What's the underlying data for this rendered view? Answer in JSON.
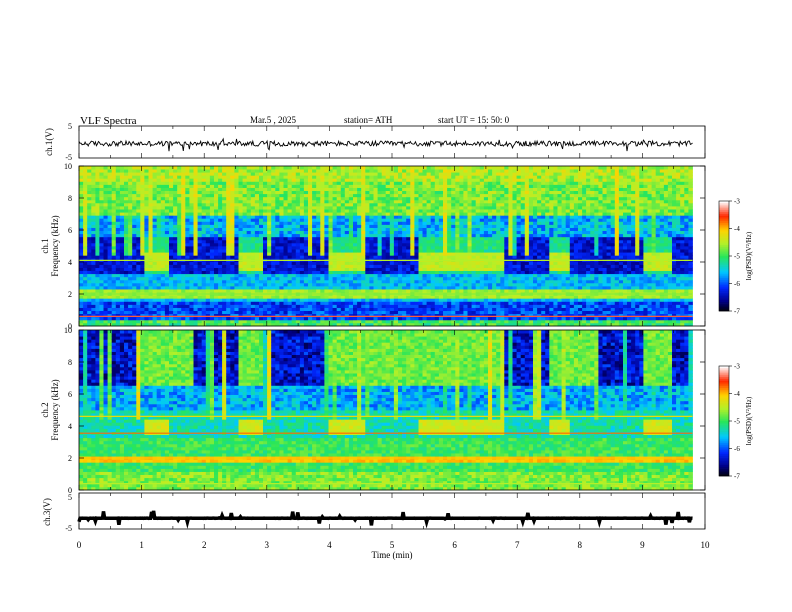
{
  "header": {
    "title": "VLF  Spectra",
    "date": "Mar.5  , 2025",
    "station": "station= ATH",
    "start": "start  UT  =    15: 50: 0"
  },
  "chart_data": [
    {
      "type": "line",
      "name": "ch1-waveform",
      "ylabel": "ch.1(V)",
      "ylim": [
        -5,
        5
      ],
      "yticks": [
        "5",
        "-5"
      ],
      "xlim": [
        0,
        10
      ],
      "description_level": -0.5
    },
    {
      "type": "heatmap",
      "name": "ch1-spectrogram",
      "ylabel": "ch.1\nFrequency  (kHz)",
      "ylabel_lines": [
        "ch.1",
        "Frequency  (kHz)"
      ],
      "ylim": [
        0,
        10
      ],
      "yticks": [
        "0",
        "2",
        "4",
        "6",
        "8",
        "10"
      ],
      "xlim": [
        0,
        10
      ],
      "x_end": 9.8,
      "band_intervals_min": [
        [
          1.05,
          1.45
        ],
        [
          2.55,
          2.95
        ],
        [
          4.0,
          4.55
        ],
        [
          5.45,
          6.8
        ],
        [
          7.5,
          7.85
        ],
        [
          9.0,
          9.5
        ]
      ],
      "colorbar": {
        "label": "log(PSD)(V²/Hz)",
        "range": [
          -7,
          -3
        ],
        "ticks": [
          "-3",
          "-4",
          "-5",
          "-6",
          "-7"
        ]
      }
    },
    {
      "type": "heatmap",
      "name": "ch2-spectrogram",
      "ylabel": "ch.2\nFrequency  (kHz)",
      "ylabel_lines": [
        "ch.2",
        "Frequency  (kHz)"
      ],
      "ylim": [
        0,
        10
      ],
      "yticks": [
        "0",
        "2",
        "4",
        "6",
        "8",
        "10"
      ],
      "xlim": [
        0,
        10
      ],
      "x_end": 9.8,
      "band_intervals_min": [
        [
          1.05,
          1.45
        ],
        [
          2.55,
          2.95
        ],
        [
          4.0,
          4.55
        ],
        [
          5.45,
          6.8
        ],
        [
          7.5,
          7.85
        ],
        [
          9.0,
          9.5
        ]
      ],
      "colorbar": {
        "label": "log(PSD)(V²/Hz)",
        "range": [
          -7,
          -3
        ],
        "ticks": [
          "-3",
          "-4",
          "-5",
          "-6",
          "-7"
        ]
      }
    },
    {
      "type": "line",
      "name": "ch3-waveform",
      "ylabel": "ch.3(V)",
      "ylim": [
        -5,
        5
      ],
      "yticks": [
        "5",
        "-5"
      ],
      "xlim": [
        0,
        10
      ],
      "xlabel": "Time  (min)",
      "xticks": [
        "0",
        "1",
        "2",
        "3",
        "4",
        "5",
        "6",
        "7",
        "8",
        "9",
        "10"
      ],
      "description_level": -2
    }
  ]
}
